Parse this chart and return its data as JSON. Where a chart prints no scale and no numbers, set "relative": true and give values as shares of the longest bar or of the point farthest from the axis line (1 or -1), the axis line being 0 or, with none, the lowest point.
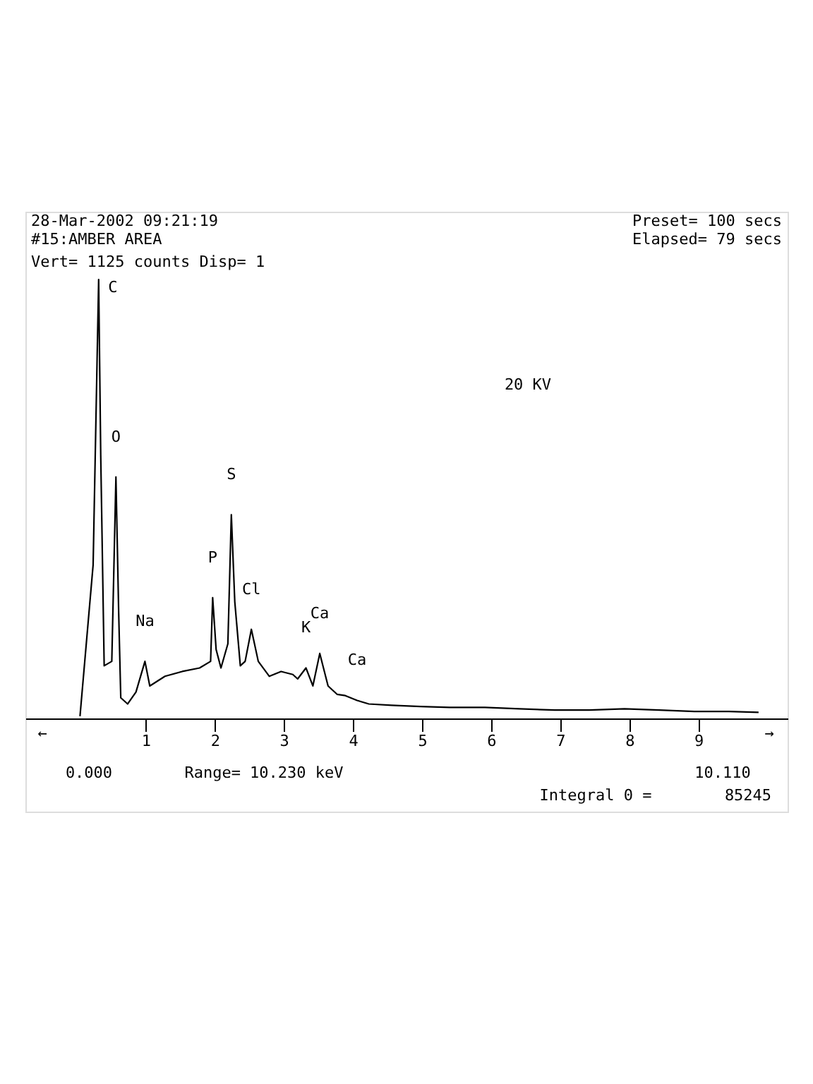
{
  "chart_data": {
    "type": "line",
    "title": "28-Mar-2002 09:21:19",
    "subtitle": "#15:AMBER AREA",
    "relative": true,
    "x": [
      0.05,
      0.24,
      0.32,
      0.35,
      0.4,
      0.51,
      0.57,
      0.61,
      0.64,
      0.74,
      0.86,
      0.99,
      1.06,
      1.28,
      1.53,
      1.78,
      1.94,
      1.97,
      2.02,
      2.09,
      2.19,
      2.24,
      2.29,
      2.37,
      2.44,
      2.53,
      2.63,
      2.79,
      2.96,
      3.13,
      3.2,
      3.32,
      3.42,
      3.52,
      3.64,
      3.77,
      3.89,
      4.06,
      4.23,
      4.56,
      4.98,
      5.4,
      5.91,
      6.41,
      6.92,
      7.42,
      7.93,
      8.43,
      8.94,
      9.44,
      9.87
    ],
    "series": [
      {
        "color": "#000000",
        "values": [
          0.005,
          0.35,
          1.0,
          0.6,
          0.12,
          0.13,
          0.55,
          0.24,
          0.047,
          0.033,
          0.06,
          0.13,
          0.074,
          0.096,
          0.107,
          0.115,
          0.13,
          0.275,
          0.157,
          0.115,
          0.17,
          0.464,
          0.266,
          0.12,
          0.13,
          0.203,
          0.13,
          0.096,
          0.107,
          0.1,
          0.09,
          0.115,
          0.074,
          0.148,
          0.074,
          0.055,
          0.052,
          0.041,
          0.033,
          0.03,
          0.027,
          0.025,
          0.025,
          0.022,
          0.019,
          0.019,
          0.022,
          0.019,
          0.016,
          0.016,
          0.014
        ]
      }
    ],
    "xlim": [
      -0.74,
      10.29
    ],
    "xticks": [
      1,
      2,
      3,
      4,
      5,
      6,
      7,
      8,
      9
    ],
    "grid": false,
    "marker": "none",
    "line_style": "solid",
    "annotations": [
      {
        "text": "C",
        "x": 0.32,
        "y": 1.0
      },
      {
        "text": "O",
        "x": 0.57,
        "y": 0.55
      },
      {
        "text": "Na",
        "x": 0.99,
        "y": 0.13
      },
      {
        "text": "P",
        "x": 1.97,
        "y": 0.275
      },
      {
        "text": "S",
        "x": 2.24,
        "y": 0.464
      },
      {
        "text": "Cl",
        "x": 2.53,
        "y": 0.203
      },
      {
        "text": "K",
        "x": 3.32,
        "y": 0.115
      },
      {
        "text": "Ca",
        "x": 3.52,
        "y": 0.148
      },
      {
        "text": "Ca",
        "x": 4.06,
        "y": 0.041
      },
      "Vert=   1125 counts  Disp= 1",
      "Preset=    100 secs",
      "Elapsed=    79 secs",
      "20 KV",
      "0.000",
      "Range=  10.230 keV",
      "Integral 0  =",
      "85245",
      "10.110",
      "←",
      "→"
    ]
  }
}
